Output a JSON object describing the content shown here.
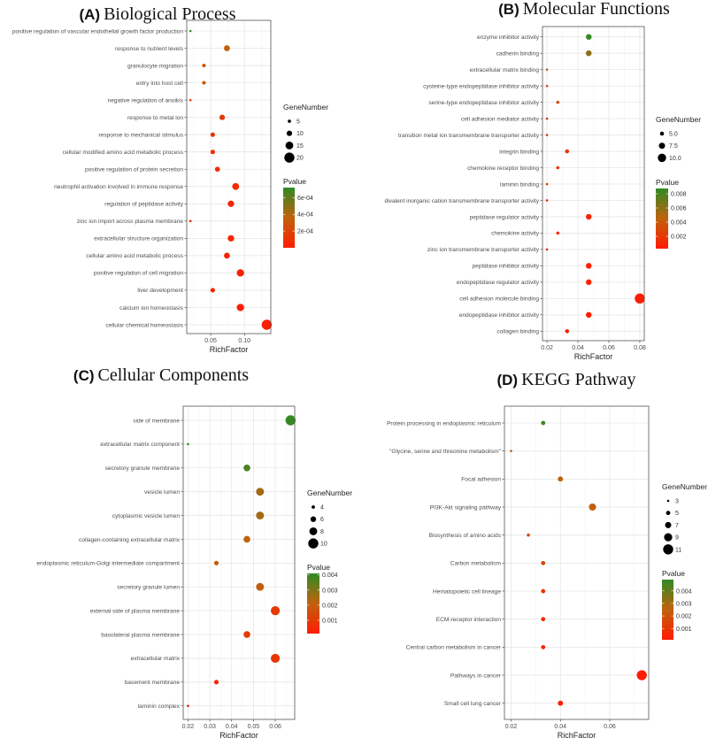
{
  "chart_data": [
    {
      "type": "scatter",
      "panel": "(A)",
      "title": "Biological Process",
      "xlabel": "RichFactor",
      "xlim": [
        0.0145,
        0.139
      ],
      "xticks": [
        0.05,
        0.1
      ],
      "xtick_labels": [
        "0.05",
        "0.10"
      ],
      "size_legend_title": "GeneNumber",
      "size_breaks": [
        5,
        10,
        15,
        20
      ],
      "size_break_labels": [
        "5",
        "10",
        "15",
        "20"
      ],
      "size_range": [
        3,
        20
      ],
      "color_legend_title": "Pvalue",
      "pvalue_range": [
        0.0,
        0.00072
      ],
      "color_ticks": [
        0.0006,
        0.0004,
        0.0002
      ],
      "color_tick_labels": [
        "6e-04",
        "4e-04",
        "2e-04"
      ],
      "terms": [
        {
          "term": "positive regulation of vascular endothelial growth factor production",
          "rich": 0.02,
          "genes": 3,
          "p": 0.0007
        },
        {
          "term": "response to nutrient levels",
          "rich": 0.074,
          "genes": 11,
          "p": 0.00035
        },
        {
          "term": "granulocyte migration",
          "rich": 0.04,
          "genes": 6,
          "p": 0.0003
        },
        {
          "term": "entry into host cell",
          "rich": 0.04,
          "genes": 6,
          "p": 0.0003
        },
        {
          "term": "negative regulation of anoikis",
          "rich": 0.02,
          "genes": 3,
          "p": 0.00012
        },
        {
          "term": "response to metal ion",
          "rich": 0.067,
          "genes": 10,
          "p": 0.00016
        },
        {
          "term": "response to mechanical stimulus",
          "rich": 0.053,
          "genes": 8,
          "p": 0.00011
        },
        {
          "term": "cellular modified amino acid metabolic process",
          "rich": 0.053,
          "genes": 8,
          "p": 0.0001
        },
        {
          "term": "positive regulation of protein secretion",
          "rich": 0.06,
          "genes": 9,
          "p": 8e-05
        },
        {
          "term": "neutrophil activation involved in immune response",
          "rich": 0.087,
          "genes": 13,
          "p": 7e-05
        },
        {
          "term": "regulation of peptidase activity",
          "rich": 0.08,
          "genes": 12,
          "p": 5e-05
        },
        {
          "term": "zinc ion import across plasma membrane",
          "rich": 0.02,
          "genes": 3,
          "p": 6e-05
        },
        {
          "term": "extracellular structure organization",
          "rich": 0.08,
          "genes": 12,
          "p": 4e-05
        },
        {
          "term": "cellular amino acid metabolic process",
          "rich": 0.074,
          "genes": 11,
          "p": 4e-05
        },
        {
          "term": "positive regulation of cell migration",
          "rich": 0.094,
          "genes": 14,
          "p": 2e-05
        },
        {
          "term": "liver development",
          "rich": 0.053,
          "genes": 8,
          "p": 3e-05
        },
        {
          "term": "calcium ion homeostasis",
          "rich": 0.094,
          "genes": 14,
          "p": 1e-05
        },
        {
          "term": "cellular chemical homeostasis",
          "rich": 0.133,
          "genes": 20,
          "p": 5e-06
        }
      ]
    },
    {
      "type": "scatter",
      "panel": "(B)",
      "title": "Molecular Functions",
      "xlabel": "RichFactor",
      "xlim": [
        0.0171,
        0.0829
      ],
      "xticks": [
        0.02,
        0.04,
        0.06,
        0.08
      ],
      "xtick_labels": [
        "0.02",
        "0.04",
        "0.06",
        "0.08"
      ],
      "size_legend_title": "GeneNumber",
      "size_breaks": [
        5.0,
        7.5,
        10.0
      ],
      "size_break_labels": [
        "5.0",
        "7.5",
        "10.0"
      ],
      "size_range": [
        3,
        12
      ],
      "color_legend_title": "Pvalue",
      "pvalue_range": [
        0.00026,
        0.00875
      ],
      "color_ticks": [
        0.008,
        0.006,
        0.004,
        0.002
      ],
      "color_tick_labels": [
        "0.008",
        "0.006",
        "0.004",
        "0.002"
      ],
      "terms": [
        {
          "term": "enzyme inhibitor activity",
          "rich": 0.047,
          "genes": 7,
          "p": 0.0085
        },
        {
          "term": "cadherin binding",
          "rich": 0.047,
          "genes": 7,
          "p": 0.006
        },
        {
          "term": "extracellular matrix binding",
          "rich": 0.02,
          "genes": 3,
          "p": 0.004
        },
        {
          "term": "cysteine-type endopeptidase inhibitor activity",
          "rich": 0.02,
          "genes": 3,
          "p": 0.0025
        },
        {
          "term": "serine-type endopeptidase inhibitor activity",
          "rich": 0.027,
          "genes": 4,
          "p": 0.003
        },
        {
          "term": "cell adhesion mediator activity",
          "rich": 0.02,
          "genes": 3,
          "p": 0.002
        },
        {
          "term": "transition metal ion transmembrane transporter activity",
          "rich": 0.02,
          "genes": 3,
          "p": 0.002
        },
        {
          "term": "integrin binding",
          "rich": 0.033,
          "genes": 5,
          "p": 0.0016
        },
        {
          "term": "chemokine receptor binding",
          "rich": 0.027,
          "genes": 4,
          "p": 0.0015
        },
        {
          "term": "laminin binding",
          "rich": 0.02,
          "genes": 3,
          "p": 0.001
        },
        {
          "term": "divalent inorganic cation transmembrane transporter activity",
          "rich": 0.02,
          "genes": 3,
          "p": 0.001
        },
        {
          "term": "peptidase regulator activity",
          "rich": 0.047,
          "genes": 7,
          "p": 0.0008
        },
        {
          "term": "chemokine activity",
          "rich": 0.027,
          "genes": 4,
          "p": 0.0012
        },
        {
          "term": "zinc ion transmembrane transporter activity",
          "rich": 0.02,
          "genes": 3,
          "p": 0.001
        },
        {
          "term": "peptidase inhibitor activity",
          "rich": 0.047,
          "genes": 7,
          "p": 0.0005
        },
        {
          "term": "endopeptidase regulator activity",
          "rich": 0.047,
          "genes": 7,
          "p": 0.0005
        },
        {
          "term": "cell adhesion molecule binding",
          "rich": 0.08,
          "genes": 12,
          "p": 0.0003
        },
        {
          "term": "endopeptidase inhibitor activity",
          "rich": 0.047,
          "genes": 7,
          "p": 0.0004
        },
        {
          "term": "collagen binding",
          "rich": 0.033,
          "genes": 5,
          "p": 0.0003
        }
      ]
    },
    {
      "type": "scatter",
      "panel": "(C)",
      "title": "Cellular Components",
      "xlabel": "RichFactor",
      "xlim": [
        0.0178,
        0.0689
      ],
      "xticks": [
        0.02,
        0.03,
        0.04,
        0.05,
        0.06
      ],
      "xtick_labels": [
        "0.02",
        "0.03",
        "0.04",
        "0.05",
        "0.06"
      ],
      "size_legend_title": "GeneNumber",
      "size_breaks": [
        4,
        6,
        8,
        10
      ],
      "size_break_labels": [
        "4",
        "6",
        "8",
        "10"
      ],
      "size_range": [
        3,
        10
      ],
      "color_legend_title": "Pvalue",
      "pvalue_range": [
        0.00012,
        0.0041
      ],
      "color_ticks": [
        0.004,
        0.003,
        0.002,
        0.001
      ],
      "color_tick_labels": [
        "0.004",
        "0.003",
        "0.002",
        "0.001"
      ],
      "terms": [
        {
          "term": "side of membrane",
          "rich": 0.067,
          "genes": 10,
          "p": 0.004
        },
        {
          "term": "extracellular matrix component",
          "rich": 0.02,
          "genes": 3,
          "p": 0.004
        },
        {
          "term": "secretory granule membrane",
          "rich": 0.047,
          "genes": 7,
          "p": 0.0037
        },
        {
          "term": "vesicle lumen",
          "rich": 0.053,
          "genes": 8,
          "p": 0.0025
        },
        {
          "term": "cytoplasmic vesicle lumen",
          "rich": 0.053,
          "genes": 8,
          "p": 0.0025
        },
        {
          "term": "collagen-containing extracellular matrix",
          "rich": 0.047,
          "genes": 7,
          "p": 0.0021
        },
        {
          "term": "endoplasmic reticulum-Golgi intermediate compartment",
          "rich": 0.033,
          "genes": 5,
          "p": 0.0019
        },
        {
          "term": "secretory granule lumen",
          "rich": 0.053,
          "genes": 8,
          "p": 0.002
        },
        {
          "term": "external side of plasma membrane",
          "rich": 0.06,
          "genes": 9,
          "p": 0.0009
        },
        {
          "term": "basolateral plasma membrane",
          "rich": 0.047,
          "genes": 7,
          "p": 0.001
        },
        {
          "term": "extracellular matrix",
          "rich": 0.06,
          "genes": 9,
          "p": 0.0008
        },
        {
          "term": "basement membrane",
          "rich": 0.033,
          "genes": 5,
          "p": 0.0003
        },
        {
          "term": "laminin complex",
          "rich": 0.02,
          "genes": 3,
          "p": 0.0002
        }
      ]
    },
    {
      "type": "scatter",
      "panel": "(D)",
      "title": "KEGG Pathway",
      "xlabel": "RichFactor",
      "xlim": [
        0.0173,
        0.0758
      ],
      "xticks": [
        0.02,
        0.04,
        0.06
      ],
      "xtick_labels": [
        "0.02",
        "0.04",
        "0.06"
      ],
      "size_legend_title": "GeneNumber",
      "size_breaks": [
        3,
        5,
        7,
        9,
        11
      ],
      "size_break_labels": [
        "3",
        "5",
        "7",
        "9",
        "11"
      ],
      "size_range": [
        3,
        11
      ],
      "color_legend_title": "Pvalue",
      "pvalue_range": [
        0.0001,
        0.0049
      ],
      "color_ticks": [
        0.004,
        0.003,
        0.002,
        0.001
      ],
      "color_tick_labels": [
        "0.004",
        "0.003",
        "0.002",
        "0.001"
      ],
      "terms": [
        {
          "term": "Protein processing in endoplasmic reticulum",
          "rich": 0.033,
          "genes": 5,
          "p": 0.0045
        },
        {
          "term": "\"Glycine, serine and threonine metabolism\"",
          "rich": 0.02,
          "genes": 3,
          "p": 0.0025
        },
        {
          "term": "Focal adhesion",
          "rich": 0.04,
          "genes": 6,
          "p": 0.0025
        },
        {
          "term": "PI3K-Akt signaling pathway",
          "rich": 0.053,
          "genes": 8,
          "p": 0.0024
        },
        {
          "term": "Biosynthesis of amino acids",
          "rich": 0.027,
          "genes": 4,
          "p": 0.002
        },
        {
          "term": "Carbon metabolism",
          "rich": 0.033,
          "genes": 5,
          "p": 0.0015
        },
        {
          "term": "Hematopoietic cell lineage",
          "rich": 0.033,
          "genes": 5,
          "p": 0.0008
        },
        {
          "term": "ECM-receptor interaction",
          "rich": 0.033,
          "genes": 5,
          "p": 0.0006
        },
        {
          "term": "Central carbon metabolism in cancer",
          "rich": 0.033,
          "genes": 5,
          "p": 0.0004
        },
        {
          "term": "Pathways in cancer",
          "rich": 0.073,
          "genes": 11,
          "p": 0.0001
        },
        {
          "term": "Small cell lung cancer",
          "rich": 0.04,
          "genes": 6,
          "p": 0.0002
        }
      ]
    }
  ]
}
